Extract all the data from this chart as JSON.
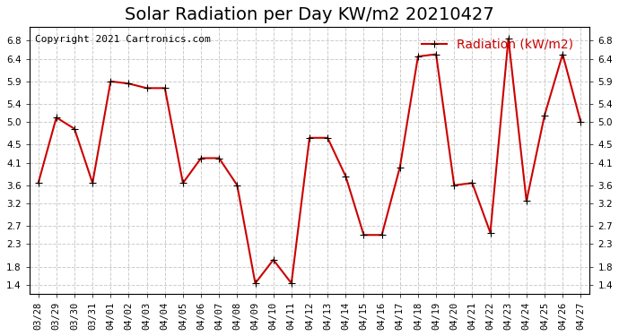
{
  "title": "Solar Radiation per Day KW/m2 20210427",
  "copyright": "Copyright 2021 Cartronics.com",
  "legend_label": "Radiation (kW/m2)",
  "dates": [
    "03/28",
    "03/29",
    "03/30",
    "03/31",
    "04/01",
    "04/02",
    "04/03",
    "04/04",
    "04/05",
    "04/06",
    "04/07",
    "04/08",
    "04/09",
    "04/10",
    "04/11",
    "04/12",
    "04/13",
    "04/14",
    "04/15",
    "04/16",
    "04/17",
    "04/18",
    "04/19",
    "04/20",
    "04/21",
    "04/22",
    "04/23",
    "04/24",
    "04/25",
    "04/26",
    "04/27"
  ],
  "values": [
    3.65,
    5.1,
    4.85,
    3.65,
    5.9,
    5.85,
    5.75,
    5.75,
    3.65,
    4.2,
    4.2,
    3.6,
    1.43,
    1.95,
    1.43,
    4.65,
    4.65,
    3.8,
    2.5,
    2.5,
    4.0,
    6.45,
    6.5,
    3.6,
    3.65,
    2.55,
    6.85,
    3.25,
    5.15,
    6.5,
    5.0
  ],
  "line_color": "#cc0000",
  "marker": "+",
  "marker_size": 6,
  "line_width": 1.5,
  "grid_color": "#cccccc",
  "background_color": "#ffffff",
  "ylim": [
    1.2,
    7.1
  ],
  "yticks": [
    1.4,
    1.8,
    2.3,
    2.7,
    3.2,
    3.6,
    4.1,
    4.5,
    5.0,
    5.4,
    5.9,
    6.4,
    6.8
  ],
  "title_fontsize": 14,
  "copyright_fontsize": 8,
  "legend_fontsize": 10,
  "tick_fontsize": 7.5
}
